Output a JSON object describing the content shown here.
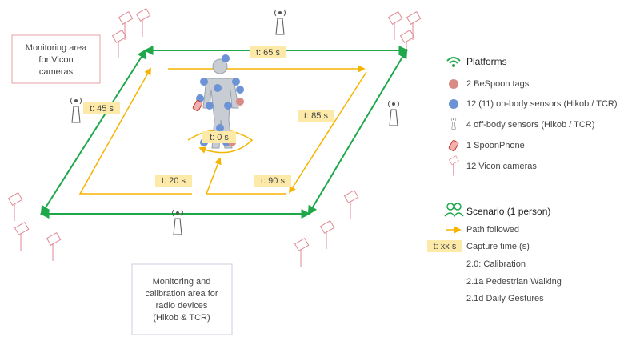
{
  "areas": [
    {
      "lines": [
        "Monitoring area",
        "for Vicon",
        "cameras"
      ]
    },
    {
      "lines": [
        "Monitoring and",
        "calibration area for",
        "radio devices",
        "(Hikob & TCR)"
      ]
    }
  ],
  "time_labels": [
    "t: 65 s",
    "t: 45 s",
    "t: 0 s",
    "t: 85 s",
    "t: 20 s",
    "t: 90 s"
  ],
  "legend": {
    "platforms": {
      "title": "Platforms",
      "items": [
        "2 BeSpoon tags",
        "12 (11) on-body sensors (Hikob / TCR)",
        "4 off-body sensors (Hikob / TCR)",
        "1 SpoonPhone",
        "12 Vicon cameras"
      ]
    },
    "scenario": {
      "title": "Scenario (1 person)",
      "path": "Path followed",
      "time_key": "t: xx s",
      "time_label": "Capture time (s)",
      "scenarios": [
        "2.0:  Calibration",
        "2.1a Pedestrian Walking",
        "2.1d Daily Gestures"
      ]
    }
  }
}
